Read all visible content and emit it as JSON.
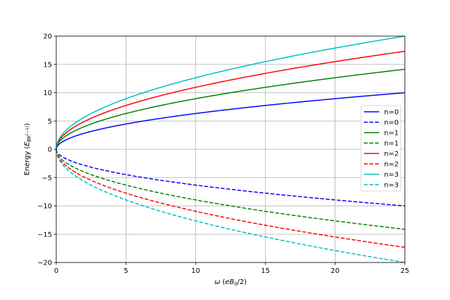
{
  "chart_data": {
    "type": "line",
    "title": "",
    "xlabel": "ω (eB₀/2)",
    "ylabel": "Energy (E_{BK^(-1)})",
    "xlim": [
      0,
      25
    ],
    "ylim": [
      -20,
      20
    ],
    "xticks": [
      0,
      5,
      10,
      15,
      20,
      25
    ],
    "yticks": [
      -20,
      -15,
      -10,
      -5,
      0,
      5,
      10,
      15,
      20
    ],
    "grid": true,
    "legend_position": "center-right",
    "x": [
      0,
      0.25,
      0.5,
      1,
      2,
      3,
      4,
      5,
      6,
      8,
      10,
      12.5,
      15,
      17.5,
      20,
      22.5,
      25
    ],
    "series": [
      {
        "name": "n=0",
        "color": "#0000ff",
        "style": "solid",
        "values": [
          0,
          1.0,
          1.41,
          2.0,
          2.83,
          3.46,
          4.0,
          4.47,
          4.9,
          5.66,
          6.32,
          7.07,
          7.75,
          8.37,
          8.94,
          9.49,
          10.0
        ]
      },
      {
        "name": "n=0",
        "color": "#0000ff",
        "style": "dashed",
        "values": [
          0,
          -1.0,
          -1.41,
          -2.0,
          -2.83,
          -3.46,
          -4.0,
          -4.47,
          -4.9,
          -5.66,
          -6.32,
          -7.07,
          -7.75,
          -8.37,
          -8.94,
          -9.49,
          -10.0
        ]
      },
      {
        "name": "n=1",
        "color": "#008000",
        "style": "solid",
        "values": [
          0,
          1.41,
          2.0,
          2.83,
          4.0,
          4.9,
          5.66,
          6.32,
          6.93,
          8.0,
          8.94,
          10.0,
          10.95,
          11.83,
          12.65,
          13.42,
          14.14
        ]
      },
      {
        "name": "n=1",
        "color": "#008000",
        "style": "dashed",
        "values": [
          0,
          -1.41,
          -2.0,
          -2.83,
          -4.0,
          -4.9,
          -5.66,
          -6.32,
          -6.93,
          -8.0,
          -8.94,
          -10.0,
          -10.95,
          -11.83,
          -12.65,
          -13.42,
          -14.14
        ]
      },
      {
        "name": "n=2",
        "color": "#ff0000",
        "style": "solid",
        "values": [
          0,
          1.73,
          2.45,
          3.46,
          4.9,
          6.0,
          6.93,
          7.75,
          8.49,
          9.8,
          10.95,
          12.25,
          13.42,
          14.49,
          15.49,
          16.43,
          17.32
        ]
      },
      {
        "name": "n=2",
        "color": "#ff0000",
        "style": "dashed",
        "values": [
          0,
          -1.73,
          -2.45,
          -3.46,
          -4.9,
          -6.0,
          -6.93,
          -7.75,
          -8.49,
          -9.8,
          -10.95,
          -12.25,
          -13.42,
          -14.49,
          -15.49,
          -16.43,
          -17.32
        ]
      },
      {
        "name": "n=3",
        "color": "#00bfbf",
        "style": "solid",
        "values": [
          0,
          2.0,
          2.83,
          4.0,
          5.66,
          6.93,
          8.0,
          8.94,
          9.8,
          11.31,
          12.65,
          14.14,
          15.49,
          16.73,
          17.89,
          18.97,
          20.0
        ]
      },
      {
        "name": "n=3",
        "color": "#00bfbf",
        "style": "dashed",
        "values": [
          0,
          -2.0,
          -2.83,
          -4.0,
          -5.66,
          -6.93,
          -8.0,
          -8.94,
          -9.8,
          -11.31,
          -12.65,
          -14.14,
          -15.49,
          -16.73,
          -17.89,
          -18.97,
          -20.0
        ]
      }
    ]
  }
}
